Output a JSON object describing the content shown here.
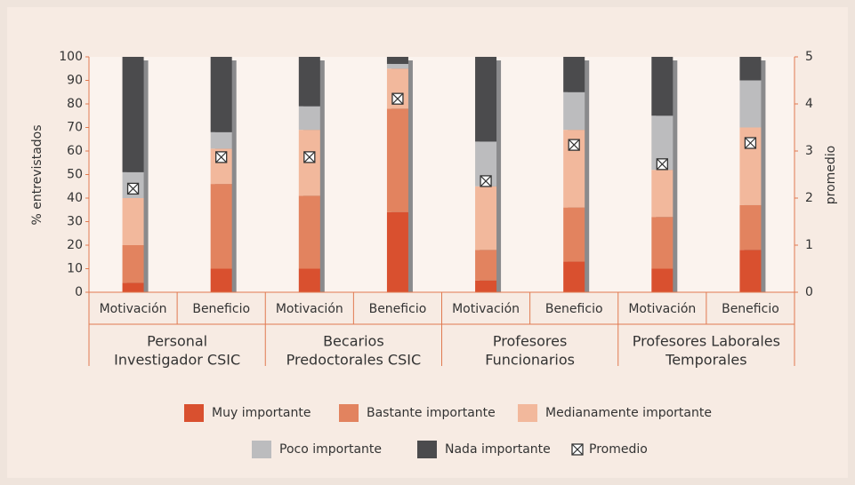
{
  "chart_data": {
    "type": "stacked_bar",
    "y_label": "% entrevistados",
    "y2_label": "promedio",
    "groups": [
      {
        "lines": [
          "Personal",
          "Investigador CSIC"
        ],
        "categories": [
          "Motivación",
          "Beneficio"
        ]
      },
      {
        "lines": [
          "Becarios",
          "Predoctorales CSIC"
        ],
        "categories": [
          "Motivación",
          "Beneficio"
        ]
      },
      {
        "lines": [
          "Profesores",
          "Funcionarios"
        ],
        "categories": [
          "Motivación",
          "Beneficio"
        ]
      },
      {
        "lines": [
          "Profesores Laborales",
          "Temporales"
        ],
        "categories": [
          "Motivación",
          "Beneficio"
        ]
      }
    ],
    "series": [
      {
        "name": "Muy importante",
        "color": "#d9502f",
        "values": [
          4,
          10,
          10,
          34,
          5,
          13,
          10,
          18
        ]
      },
      {
        "name": "Bastante importante",
        "color": "#e2835f",
        "values": [
          16,
          36,
          31,
          44,
          13,
          23,
          22,
          19
        ]
      },
      {
        "name": "Medianamente importante",
        "color": "#f2b89c",
        "values": [
          20,
          15,
          28,
          17,
          27,
          33,
          20,
          33
        ]
      },
      {
        "name": "Poco importante",
        "color": "#bcbcbe",
        "values": [
          11,
          7,
          10,
          2,
          19,
          16,
          23,
          20
        ]
      },
      {
        "name": "Nada importante",
        "color": "#4b4b4d",
        "values": [
          49,
          32,
          21,
          3,
          36,
          15,
          25,
          10
        ]
      }
    ],
    "promedio": {
      "name": "Promedio",
      "axis": "y2",
      "color": "#333333",
      "values": [
        2.2,
        2.87,
        2.87,
        4.11,
        2.36,
        3.13,
        2.72,
        3.17
      ]
    },
    "ylim": [
      0,
      100
    ],
    "yticks": [
      0,
      10,
      20,
      30,
      40,
      50,
      60,
      70,
      80,
      90,
      100
    ],
    "y2lim": [
      0,
      5
    ],
    "y2ticks": [
      0,
      1,
      2,
      3,
      4,
      5
    ],
    "axis_color": "#e07a50"
  }
}
